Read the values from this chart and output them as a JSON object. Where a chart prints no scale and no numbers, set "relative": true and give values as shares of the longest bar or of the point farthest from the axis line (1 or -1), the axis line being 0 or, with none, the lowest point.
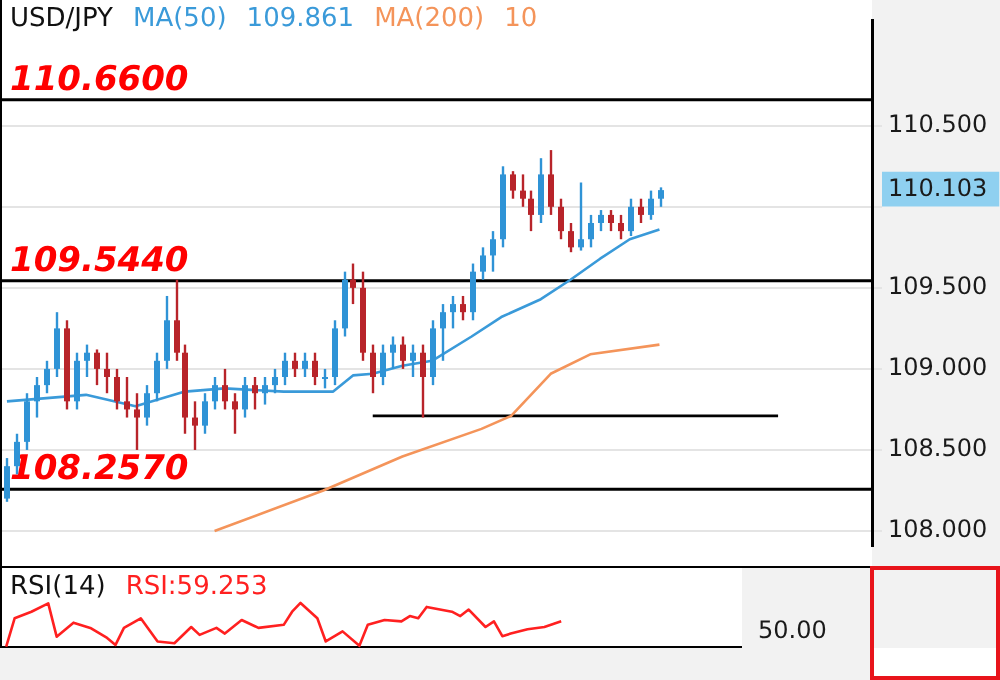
{
  "chart_data": [
    {
      "type": "candlestick",
      "title": "USD/JPY",
      "annotations": [
        "109.861",
        "10"
      ],
      "categories": [
        null,
        null,
        null,
        null,
        null,
        null,
        null,
        null,
        null,
        null,
        null,
        null,
        null,
        null,
        null,
        null,
        null,
        null,
        null,
        null,
        null,
        null,
        null,
        null,
        null,
        null,
        null,
        null,
        null,
        null,
        null,
        null,
        null,
        null,
        null,
        null,
        null,
        null,
        null,
        null,
        null,
        null,
        null,
        null,
        null,
        null,
        null,
        null,
        null,
        null,
        null,
        null,
        null,
        null,
        null,
        null,
        null,
        null,
        null,
        null,
        null,
        null,
        null,
        null,
        null,
        null,
        null,
        null,
        null,
        null,
        null,
        null,
        null,
        null,
        null,
        null,
        null,
        null,
        null,
        null,
        null,
        null,
        null,
        null,
        null,
        null,
        null,
        null
      ],
      "ohlc": [
        [
          108.2,
          108.45,
          108.18,
          108.4
        ],
        [
          108.4,
          108.6,
          108.35,
          108.55
        ],
        [
          108.55,
          108.85,
          108.5,
          108.8
        ],
        [
          108.8,
          108.95,
          108.7,
          108.9
        ],
        [
          108.9,
          109.05,
          108.85,
          109.0
        ],
        [
          109.0,
          109.35,
          108.95,
          109.25
        ],
        [
          109.25,
          109.3,
          108.75,
          108.8
        ],
        [
          108.8,
          109.1,
          108.75,
          109.05
        ],
        [
          109.05,
          109.15,
          108.95,
          109.1
        ],
        [
          109.1,
          109.12,
          108.9,
          109.0
        ],
        [
          109.0,
          109.1,
          108.85,
          108.95
        ],
        [
          108.95,
          109.0,
          108.75,
          108.8
        ],
        [
          108.8,
          108.95,
          108.7,
          108.75
        ],
        [
          108.75,
          108.85,
          108.5,
          108.7
        ],
        [
          108.7,
          108.9,
          108.65,
          108.85
        ],
        [
          108.85,
          109.1,
          108.8,
          109.05
        ],
        [
          109.05,
          109.45,
          109.0,
          109.3
        ],
        [
          109.3,
          109.55,
          109.05,
          109.1
        ],
        [
          109.1,
          109.15,
          108.6,
          108.7
        ],
        [
          108.7,
          108.8,
          108.5,
          108.65
        ],
        [
          108.65,
          108.85,
          108.6,
          108.8
        ],
        [
          108.8,
          108.95,
          108.75,
          108.9
        ],
        [
          108.9,
          109.0,
          108.75,
          108.8
        ],
        [
          108.8,
          108.85,
          108.6,
          108.75
        ],
        [
          108.75,
          108.95,
          108.7,
          108.9
        ],
        [
          108.9,
          108.95,
          108.75,
          108.85
        ],
        [
          108.85,
          108.95,
          108.78,
          108.9
        ],
        [
          108.9,
          109.0,
          108.85,
          108.95
        ],
        [
          108.95,
          109.1,
          108.9,
          109.05
        ],
        [
          109.05,
          109.1,
          108.95,
          109.0
        ],
        [
          109.0,
          109.1,
          108.95,
          109.05
        ],
        [
          109.05,
          109.1,
          108.9,
          108.95
        ],
        [
          108.95,
          109.0,
          108.88,
          108.95
        ],
        [
          108.95,
          109.3,
          108.9,
          109.25
        ],
        [
          109.25,
          109.6,
          109.2,
          109.55
        ],
        [
          109.55,
          109.65,
          109.4,
          109.5
        ],
        [
          109.5,
          109.6,
          109.05,
          109.1
        ],
        [
          109.1,
          109.15,
          108.85,
          108.95
        ],
        [
          108.95,
          109.15,
          108.9,
          109.1
        ],
        [
          109.1,
          109.2,
          109.0,
          109.15
        ],
        [
          109.15,
          109.2,
          109.0,
          109.05
        ],
        [
          109.05,
          109.15,
          108.95,
          109.1
        ],
        [
          109.1,
          109.15,
          108.7,
          108.95
        ],
        [
          108.95,
          109.3,
          108.9,
          109.25
        ],
        [
          109.25,
          109.4,
          109.05,
          109.35
        ],
        [
          109.35,
          109.45,
          109.25,
          109.4
        ],
        [
          109.4,
          109.45,
          109.3,
          109.35
        ],
        [
          109.35,
          109.65,
          109.3,
          109.6
        ],
        [
          109.6,
          109.75,
          109.55,
          109.7
        ],
        [
          109.7,
          109.85,
          109.6,
          109.8
        ],
        [
          109.8,
          110.25,
          109.75,
          110.2
        ],
        [
          110.2,
          110.22,
          110.05,
          110.1
        ],
        [
          110.1,
          110.2,
          110.0,
          110.05
        ],
        [
          110.05,
          110.1,
          109.85,
          109.95
        ],
        [
          109.95,
          110.3,
          109.9,
          110.2
        ],
        [
          110.2,
          110.35,
          109.95,
          110.0
        ],
        [
          110.0,
          110.05,
          109.8,
          109.85
        ],
        [
          109.85,
          109.9,
          109.72,
          109.75
        ],
        [
          109.75,
          110.15,
          109.73,
          109.8
        ],
        [
          109.8,
          109.95,
          109.75,
          109.9
        ],
        [
          109.9,
          109.98,
          109.85,
          109.95
        ],
        [
          109.95,
          109.98,
          109.85,
          109.9
        ],
        [
          109.9,
          109.95,
          109.8,
          109.85
        ],
        [
          109.85,
          110.05,
          109.82,
          110.0
        ],
        [
          110.0,
          110.05,
          109.9,
          109.95
        ],
        [
          109.95,
          110.1,
          109.92,
          110.05
        ],
        [
          110.05,
          110.12,
          110.0,
          110.103
        ],
        null,
        null,
        null,
        null,
        null,
        null,
        null,
        null,
        null,
        null,
        null,
        null,
        null,
        null,
        null,
        null,
        null,
        null,
        null,
        null,
        null
      ],
      "series": [
        {
          "type": "line",
          "name": "MA(50)",
          "color": "#3a9ad9",
          "values": [
            108.8,
            null,
            null,
            null,
            null,
            null,
            null,
            null,
            108.84,
            null,
            null,
            null,
            null,
            108.77,
            null,
            null,
            null,
            null,
            108.86,
            null,
            null,
            null,
            108.88,
            null,
            null,
            null,
            null,
            null,
            108.86,
            null,
            null,
            null,
            null,
            108.86,
            null,
            108.96,
            null,
            108.97,
            null,
            null,
            109.02,
            null,
            null,
            109.05,
            null,
            null,
            null,
            109.2,
            null,
            null,
            109.32,
            null,
            null,
            null,
            109.43,
            null,
            null,
            109.55,
            null,
            null,
            109.68,
            null,
            null,
            109.8,
            null,
            null,
            109.86,
            null,
            null,
            null,
            null,
            null,
            null,
            null,
            null,
            null,
            null,
            null,
            null,
            null,
            null,
            null,
            null,
            null,
            null,
            null,
            null,
            null
          ]
        },
        {
          "type": "line",
          "name": "MA(200)",
          "color": "#f4945a",
          "values": [
            null,
            null,
            null,
            null,
            null,
            null,
            null,
            null,
            null,
            null,
            null,
            null,
            null,
            null,
            null,
            null,
            null,
            null,
            null,
            null,
            null,
            108.0,
            null,
            null,
            null,
            null,
            null,
            null,
            null,
            null,
            null,
            null,
            108.25,
            null,
            null,
            null,
            null,
            null,
            null,
            null,
            108.46,
            null,
            null,
            null,
            null,
            null,
            null,
            null,
            108.63,
            null,
            null,
            108.71,
            null,
            null,
            null,
            108.97,
            null,
            null,
            null,
            109.09,
            null,
            null,
            null,
            null,
            null,
            null,
            109.15,
            null,
            null,
            null,
            null,
            null,
            null,
            null,
            null,
            null,
            null,
            null,
            null,
            null,
            null,
            null,
            null,
            null,
            null,
            null,
            null,
            null
          ]
        },
        {
          "type": "line",
          "color": "#000000",
          "values": [
            null,
            null,
            null,
            null,
            null,
            null,
            null,
            null,
            null,
            null,
            null,
            null,
            null,
            null,
            null,
            null,
            null,
            null,
            null,
            null,
            null,
            null,
            null,
            null,
            null,
            null,
            null,
            null,
            null,
            null,
            null,
            null,
            null,
            null,
            null,
            null,
            null,
            108.71,
            null,
            null,
            null,
            null,
            null,
            null,
            null,
            null,
            null,
            null,
            null,
            null,
            null,
            null,
            null,
            null,
            null,
            null,
            null,
            null,
            null,
            null,
            null,
            null,
            null,
            null,
            null,
            null,
            null,
            null,
            null,
            null,
            null,
            null,
            null,
            null,
            null,
            null,
            null,
            null,
            108.71,
            null,
            null,
            null,
            null,
            null,
            null,
            null,
            null,
            null
          ]
        }
      ],
      "ref_lines": [
        {
          "axis": "y",
          "value": 110.66,
          "label": "110.6600",
          "color": "#000000"
        },
        {
          "axis": "y",
          "value": 109.544,
          "label": "109.5440",
          "color": "#000000"
        },
        {
          "axis": "y",
          "value": 108.257,
          "label": "108.2570",
          "color": "#000000"
        }
      ],
      "ylim": [
        107.91,
        111.15
      ],
      "yticks": [
        {
          "value": 108,
          "label": "108.000"
        },
        {
          "value": 108.5,
          "label": "108.500"
        },
        {
          "value": 109,
          "label": "109.000"
        },
        {
          "value": 109.5,
          "label": "109.500"
        },
        {
          "value": 110,
          "label": null
        },
        {
          "value": 110.103,
          "label": "110.103"
        },
        {
          "value": 110.5,
          "label": "110.500"
        }
      ],
      "grid": "y",
      "legend": "top left",
      "tick_labels": "y"
    },
    {
      "type": "line",
      "title": "RSI(14)",
      "relative": true,
      "annotations": [
        "50.00"
      ],
      "categories": [
        null,
        null,
        null,
        null,
        null,
        null,
        null,
        null,
        null,
        null,
        null,
        null,
        null,
        null,
        null,
        null,
        null,
        null,
        null,
        null,
        null,
        null,
        null,
        null,
        null,
        null,
        null,
        null,
        null,
        null,
        null,
        null,
        null,
        null,
        null,
        null,
        null,
        null,
        null,
        null,
        null,
        null,
        null,
        null,
        null,
        null,
        null,
        null,
        null,
        null,
        null,
        null,
        null,
        null,
        null,
        null,
        null,
        null,
        null,
        null,
        null,
        null,
        null,
        null,
        null,
        null,
        null,
        null,
        null,
        null,
        null,
        null,
        null,
        null,
        null,
        null,
        null,
        null,
        null,
        null,
        null,
        null,
        null,
        null,
        null,
        null,
        null,
        null
      ],
      "series": [
        {
          "type": "line",
          "name": "RSI:59.253",
          "color": "#ff2020",
          "values": [
            0,
            0.65,
            null,
            0.8,
            null,
            0.99,
            0.23,
            null,
            0.55,
            null,
            0.43,
            null,
            0.2,
            0.04,
            0.43,
            null,
            0.65,
            null,
            0.12,
            null,
            0.08,
            null,
            0.45,
            0.27,
            null,
            0.43,
            0.3,
            null,
            0.61,
            null,
            0.43,
            null,
            null,
            0.5,
            0.8,
            1,
            null,
            0.65,
            0.12,
            null,
            0.35,
            null,
            0.02,
            0.5,
            null,
            0.61,
            null,
            0.58,
            0.7,
            0.65,
            0.91,
            null,
            null,
            0.8,
            0.7,
            0.85,
            null,
            0.45,
            0.58,
            0.24,
            0.3,
            null,
            0.4,
            null,
            0.45,
            null,
            0.58,
            null,
            null,
            null,
            null,
            null,
            null,
            null,
            null,
            null,
            null,
            null,
            null,
            null,
            null,
            null,
            null,
            null,
            null,
            null,
            null,
            null
          ]
        }
      ],
      "legend": "top left",
      "tick_labels": "y"
    }
  ]
}
